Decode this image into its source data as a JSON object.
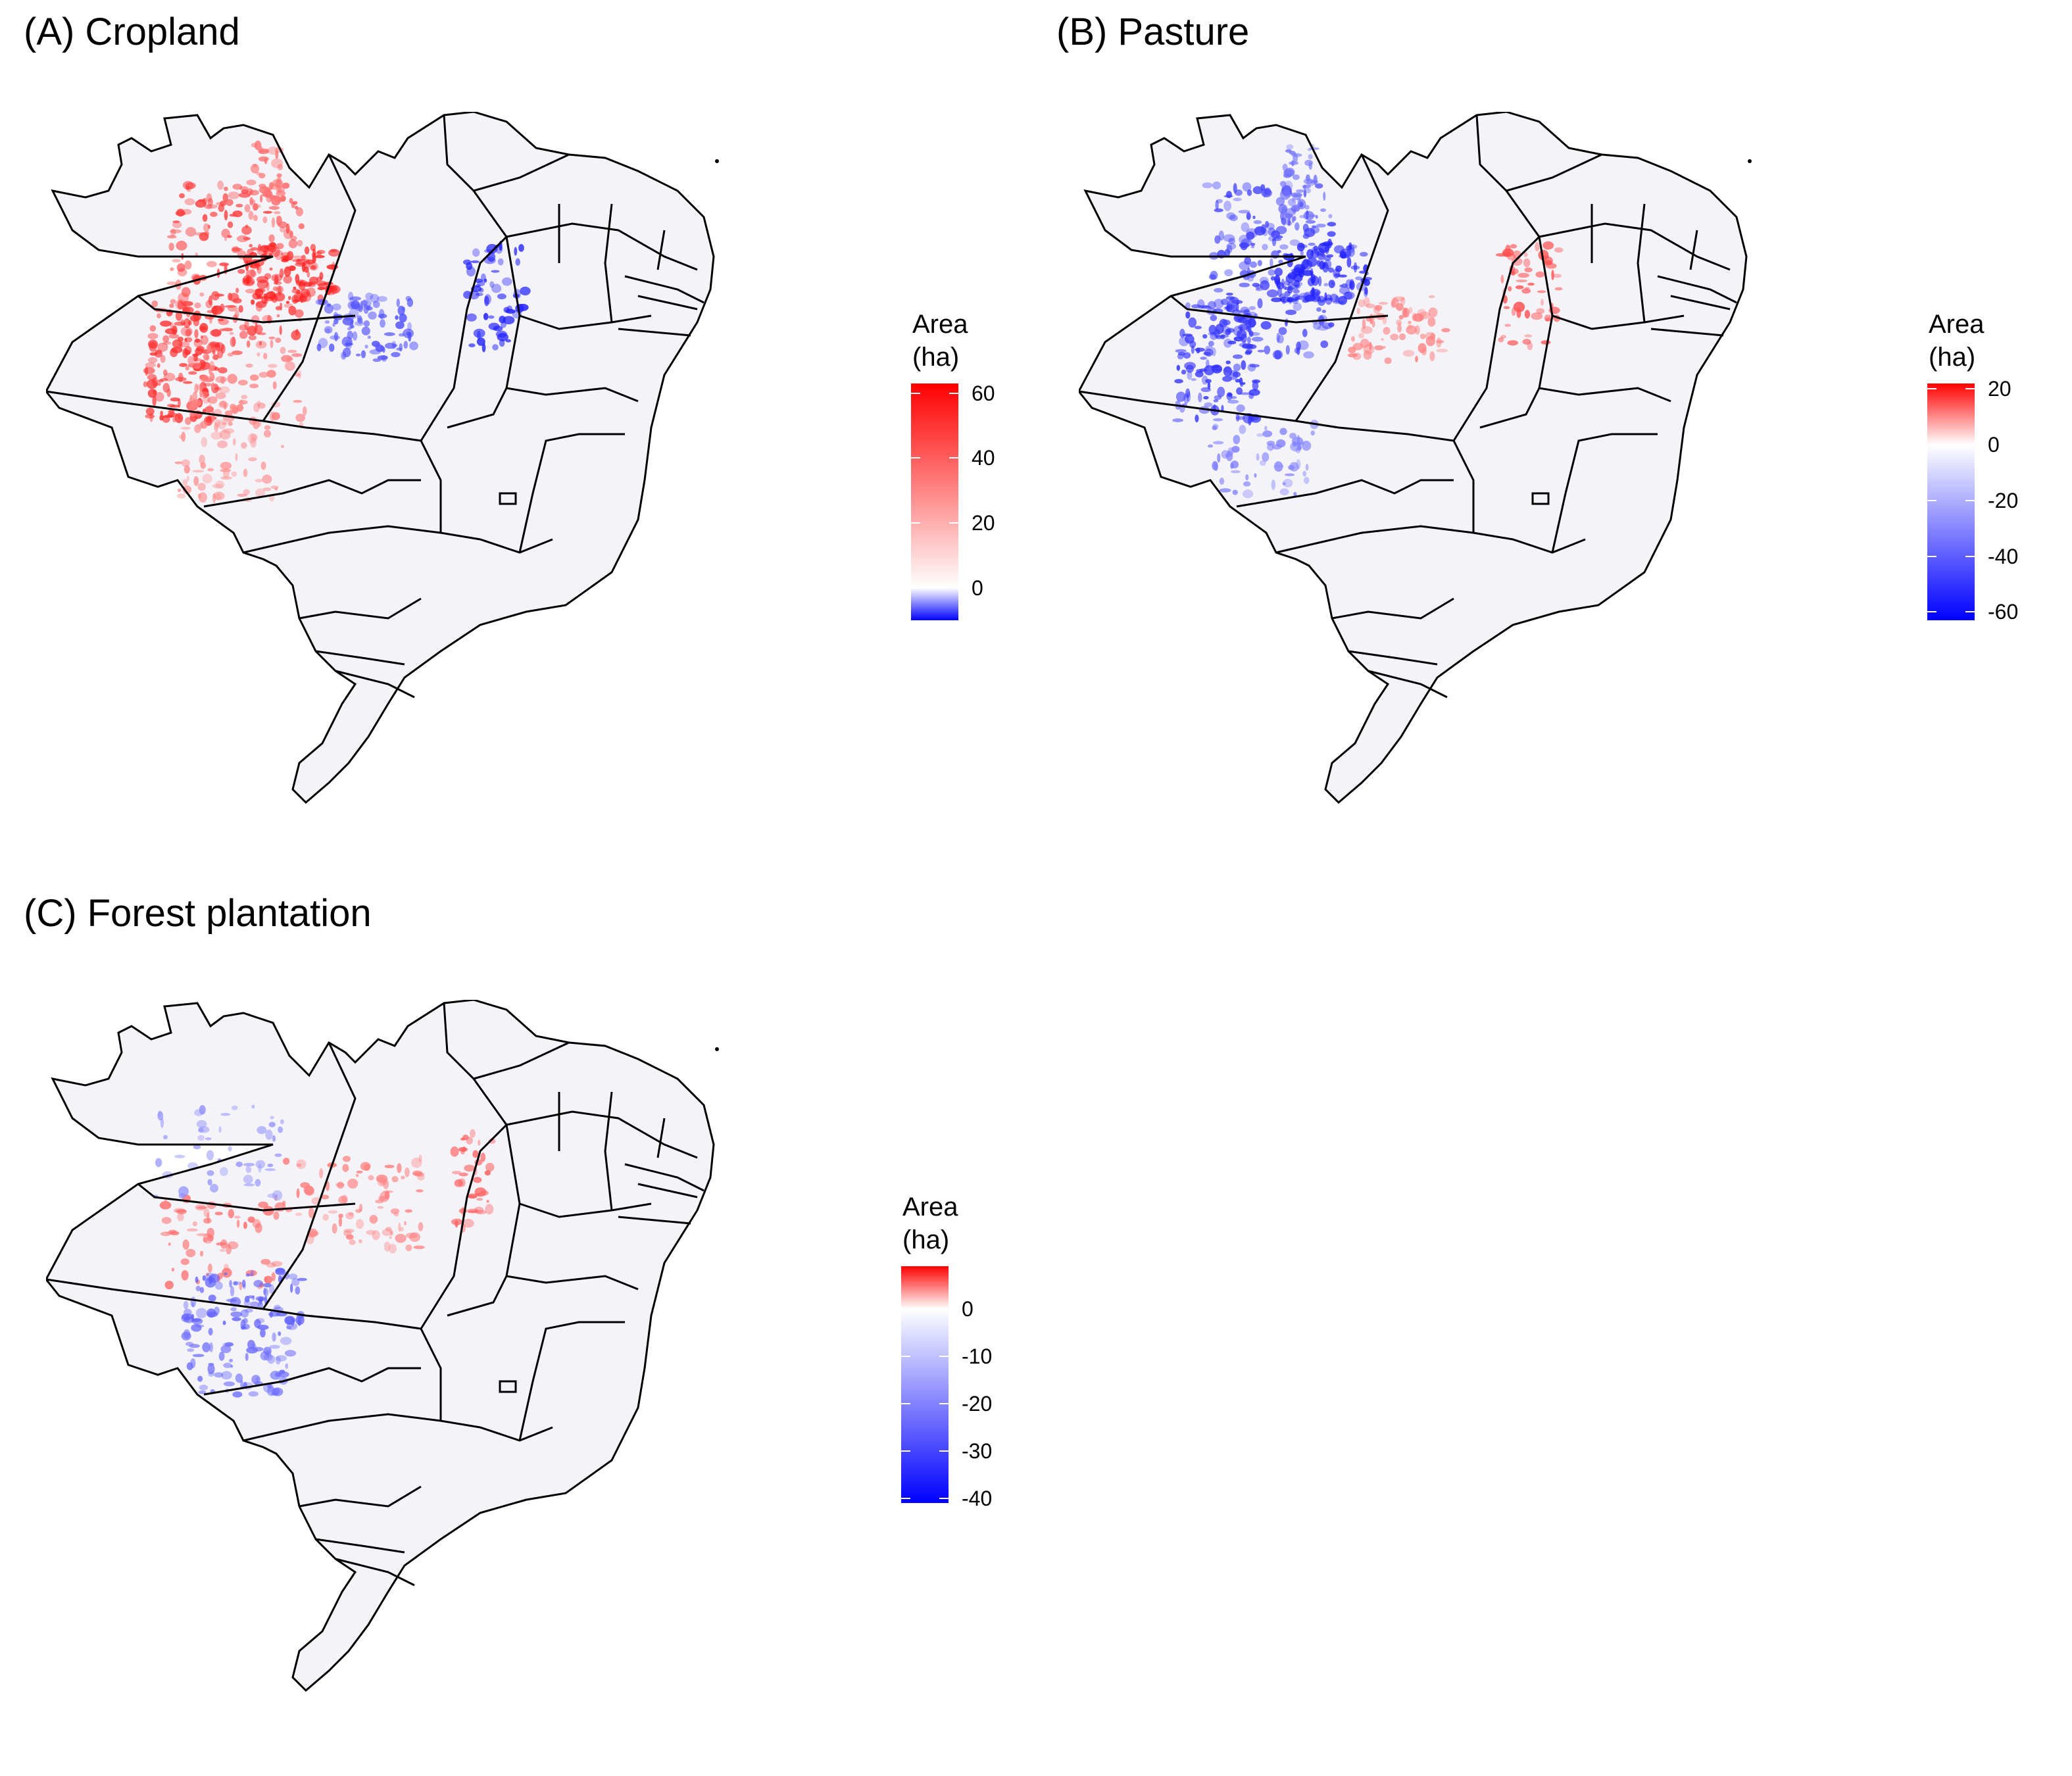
{
  "panels": [
    {
      "title": "(A) Cropland",
      "legend": {
        "title_line1": "Area",
        "title_line2": "(ha)",
        "min": -10,
        "max": 63,
        "ticks": [
          "60",
          "40",
          "20",
          "0"
        ],
        "tick_values": [
          60,
          40,
          20,
          0
        ],
        "color_low": "#0000ff",
        "color_mid": "#ffffff",
        "color_high": "#ff0000"
      },
      "dominant_change": "increase"
    },
    {
      "title": "(B) Pasture",
      "legend": {
        "title_line1": "Area",
        "title_line2": "(ha)",
        "min": -63,
        "max": 22,
        "ticks": [
          "20",
          "0",
          "-20",
          "-40",
          "-60"
        ],
        "tick_values": [
          20,
          0,
          -20,
          -40,
          -60
        ],
        "color_low": "#0000ff",
        "color_mid": "#ffffff",
        "color_high": "#ff0000"
      },
      "dominant_change": "decrease"
    },
    {
      "title": "(C) Forest plantation",
      "legend": {
        "title_line1": "Area",
        "title_line2": "(ha)",
        "min": -41,
        "max": 9,
        "ticks": [
          "0",
          "-10",
          "-20",
          "-30",
          "-40"
        ],
        "tick_values": [
          0,
          -10,
          -20,
          -30,
          -40
        ],
        "color_low": "#0000ff",
        "color_mid": "#ffffff",
        "color_high": "#ff0000"
      },
      "dominant_change": "mixed"
    }
  ],
  "colors": {
    "land_fill": "#f4f3f8",
    "border": "#000000"
  }
}
